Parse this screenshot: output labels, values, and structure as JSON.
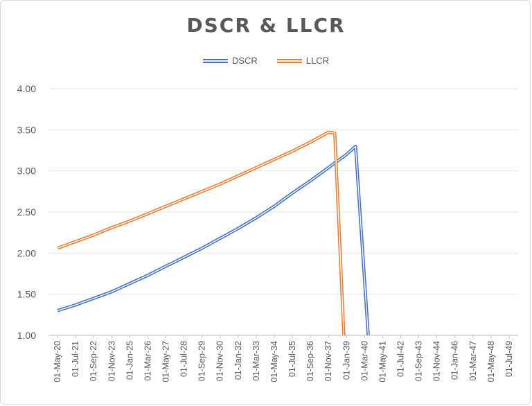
{
  "chart_data": {
    "type": "line",
    "title": "DSCR & LLCR",
    "xlabel": "",
    "ylabel": "",
    "ylim": [
      1.0,
      4.0
    ],
    "yticks": [
      "1.00",
      "1.50",
      "2.00",
      "2.50",
      "3.00",
      "3.50",
      "4.00"
    ],
    "grid": "horizontal",
    "legend": "top-center",
    "categories": [
      "01-May-20",
      "01-Jul-21",
      "01-Sep-22",
      "01-Nov-23",
      "01-Jan-25",
      "01-Mar-26",
      "01-May-27",
      "01-Jul-28",
      "01-Sep-29",
      "01-Nov-30",
      "01-Jan-32",
      "01-Mar-33",
      "01-May-34",
      "01-Jul-35",
      "01-Sep-36",
      "01-Nov-37",
      "01-Jan-39",
      "01-Mar-40",
      "01-May-41",
      "01-Jul-42",
      "01-Sep-43",
      "01-Nov-44",
      "01-Jan-46",
      "01-Mar-47",
      "01-May-48",
      "01-Jul-49"
    ],
    "series": [
      {
        "name": "DSCR",
        "color": "#4472C4",
        "points": [
          [
            0,
            1.3
          ],
          [
            1,
            1.37
          ],
          [
            2,
            1.45
          ],
          [
            3,
            1.53
          ],
          [
            4,
            1.63
          ],
          [
            5,
            1.73
          ],
          [
            6,
            1.84
          ],
          [
            7,
            1.95
          ],
          [
            8,
            2.06
          ],
          [
            9,
            2.18
          ],
          [
            10,
            2.3
          ],
          [
            11,
            2.43
          ],
          [
            12,
            2.57
          ],
          [
            13,
            2.73
          ],
          [
            14,
            2.88
          ],
          [
            15,
            3.04
          ],
          [
            16,
            3.2
          ],
          [
            16.5,
            3.3
          ],
          [
            17.2,
            1.0
          ]
        ]
      },
      {
        "name": "LLCR",
        "color": "#ED7D31",
        "points": [
          [
            0,
            2.06
          ],
          [
            1,
            2.14
          ],
          [
            2,
            2.22
          ],
          [
            3,
            2.31
          ],
          [
            4,
            2.39
          ],
          [
            5,
            2.48
          ],
          [
            6,
            2.57
          ],
          [
            7,
            2.66
          ],
          [
            8,
            2.75
          ],
          [
            9,
            2.84
          ],
          [
            10,
            2.94
          ],
          [
            11,
            3.04
          ],
          [
            12,
            3.14
          ],
          [
            13,
            3.24
          ],
          [
            14,
            3.35
          ],
          [
            15,
            3.47
          ],
          [
            15.35,
            3.46
          ],
          [
            15.85,
            1.0
          ]
        ]
      }
    ]
  }
}
